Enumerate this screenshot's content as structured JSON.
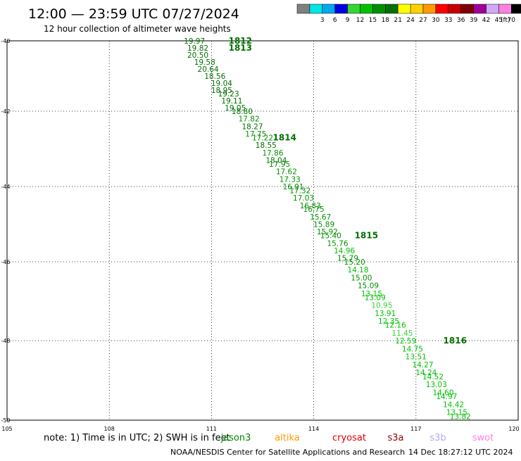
{
  "header": {
    "title": "12:00 — 23:59 UTC 07/27/2024",
    "subtitle": "12 hour collection of altimeter wave heights"
  },
  "legend": {
    "unit": "(ft)",
    "bins": [
      {
        "label": "",
        "color": "#808080"
      },
      {
        "label": "3",
        "color": "#00e5e5"
      },
      {
        "label": "6",
        "color": "#00a8f0"
      },
      {
        "label": "9",
        "color": "#0000e6"
      },
      {
        "label": "12",
        "color": "#33d633"
      },
      {
        "label": "15",
        "color": "#00c000"
      },
      {
        "label": "18",
        "color": "#009000"
      },
      {
        "label": "21",
        "color": "#007000"
      },
      {
        "label": "24",
        "color": "#ffff00"
      },
      {
        "label": "27",
        "color": "#ffd000"
      },
      {
        "label": "30",
        "color": "#ff9900"
      },
      {
        "label": "33",
        "color": "#ff0000"
      },
      {
        "label": "36",
        "color": "#c80000"
      },
      {
        "label": "39",
        "color": "#800000"
      },
      {
        "label": "42",
        "color": "#a0009a"
      },
      {
        "label": "45",
        "color": "#d0a8f8"
      },
      {
        "label": "70",
        "color": "#ff80e0"
      },
      {
        "label": "",
        "color": "#000000"
      }
    ]
  },
  "map": {
    "lat_labels": [
      "-40",
      "-42",
      "-44",
      "-46",
      "-48",
      "-50"
    ],
    "lon_labels": [
      "105",
      "108",
      "111",
      "114",
      "117",
      "120"
    ],
    "note": "note:  1) Time is in UTC;  2) SWH is in feet",
    "satellites": [
      {
        "name": "jason3",
        "color": "#008800"
      },
      {
        "name": "altika",
        "color": "#ff9900"
      },
      {
        "name": "cryosat",
        "color": "#e00000"
      },
      {
        "name": "s3a",
        "color": "#900000"
      },
      {
        "name": "s3b",
        "color": "#b8a8ee"
      },
      {
        "name": "swot",
        "color": "#ff80e0"
      }
    ],
    "hour_labels": [
      {
        "label": "1812",
        "lon": 111.5,
        "lat": -40.0
      },
      {
        "label": "1813",
        "lon": 111.5,
        "lat": -40.2
      },
      {
        "label": "1814",
        "lon": 112.8,
        "lat": -42.7
      },
      {
        "label": "1815",
        "lon": 115.2,
        "lat": -45.3
      },
      {
        "label": "1816",
        "lon": 117.8,
        "lat": -48.0
      }
    ],
    "swh_points": [
      {
        "value": "19.97",
        "lon": 110.5,
        "lat": -40.0
      },
      {
        "value": "19.82",
        "lon": 110.6,
        "lat": -40.2
      },
      {
        "value": "20.50",
        "lon": 110.6,
        "lat": -40.4
      },
      {
        "value": "19.58",
        "lon": 110.8,
        "lat": -40.6
      },
      {
        "value": "20.64",
        "lon": 110.9,
        "lat": -40.8
      },
      {
        "value": "18.56",
        "lon": 111.1,
        "lat": -41.0
      },
      {
        "value": "19.04",
        "lon": 111.3,
        "lat": -41.2
      },
      {
        "value": "18.95",
        "lon": 111.3,
        "lat": -41.4
      },
      {
        "value": "19.23",
        "lon": 111.5,
        "lat": -41.5
      },
      {
        "value": "19.11",
        "lon": 111.6,
        "lat": -41.7
      },
      {
        "value": "19.05",
        "lon": 111.7,
        "lat": -41.9
      },
      {
        "value": "18.80",
        "lon": 111.9,
        "lat": -42.0
      },
      {
        "value": "17.82",
        "lon": 112.1,
        "lat": -42.2
      },
      {
        "value": "18.27",
        "lon": 112.2,
        "lat": -42.4
      },
      {
        "value": "17.75",
        "lon": 112.3,
        "lat": -42.6
      },
      {
        "value": "17.22",
        "lon": 112.5,
        "lat": -42.7
      },
      {
        "value": "18.55",
        "lon": 112.6,
        "lat": -42.9
      },
      {
        "value": "17.86",
        "lon": 112.8,
        "lat": -43.1
      },
      {
        "value": "18.04",
        "lon": 112.9,
        "lat": -43.3
      },
      {
        "value": "17.95",
        "lon": 113.0,
        "lat": -43.4
      },
      {
        "value": "17.62",
        "lon": 113.2,
        "lat": -43.6
      },
      {
        "value": "17.33",
        "lon": 113.3,
        "lat": -43.8
      },
      {
        "value": "16.91",
        "lon": 113.4,
        "lat": -44.0
      },
      {
        "value": "17.32",
        "lon": 113.6,
        "lat": -44.1
      },
      {
        "value": "17.03",
        "lon": 113.7,
        "lat": -44.3
      },
      {
        "value": "16.83",
        "lon": 113.9,
        "lat": -44.5
      },
      {
        "value": "16.75",
        "lon": 114.0,
        "lat": -44.6
      },
      {
        "value": "15.67",
        "lon": 114.2,
        "lat": -44.8
      },
      {
        "value": "15.89",
        "lon": 114.3,
        "lat": -45.0
      },
      {
        "value": "15.92",
        "lon": 114.4,
        "lat": -45.2
      },
      {
        "value": "15.40",
        "lon": 114.5,
        "lat": -45.3
      },
      {
        "value": "15.76",
        "lon": 114.7,
        "lat": -45.5
      },
      {
        "value": "14.96",
        "lon": 114.9,
        "lat": -45.7
      },
      {
        "value": "15.79",
        "lon": 115.0,
        "lat": -45.9
      },
      {
        "value": "15.20",
        "lon": 115.2,
        "lat": -46.0
      },
      {
        "value": "14.18",
        "lon": 115.3,
        "lat": -46.2
      },
      {
        "value": "15.00",
        "lon": 115.4,
        "lat": -46.4
      },
      {
        "value": "15.09",
        "lon": 115.6,
        "lat": -46.6
      },
      {
        "value": "13.15",
        "lon": 115.7,
        "lat": -46.8
      },
      {
        "value": "13.09",
        "lon": 115.8,
        "lat": -46.9
      },
      {
        "value": "10.95",
        "lon": 116.0,
        "lat": -47.1
      },
      {
        "value": "13.91",
        "lon": 116.1,
        "lat": -47.3
      },
      {
        "value": "12.35",
        "lon": 116.2,
        "lat": -47.5
      },
      {
        "value": "12.16",
        "lon": 116.4,
        "lat": -47.6
      },
      {
        "value": "11.45",
        "lon": 116.6,
        "lat": -47.8
      },
      {
        "value": "12.59",
        "lon": 116.7,
        "lat": -48.0
      },
      {
        "value": "14.75",
        "lon": 116.9,
        "lat": -48.2
      },
      {
        "value": "13.51",
        "lon": 117.0,
        "lat": -48.4
      },
      {
        "value": "14.27",
        "lon": 117.2,
        "lat": -48.6
      },
      {
        "value": "14.24",
        "lon": 117.3,
        "lat": -48.8
      },
      {
        "value": "14.52",
        "lon": 117.5,
        "lat": -48.9
      },
      {
        "value": "13.03",
        "lon": 117.6,
        "lat": -49.1
      },
      {
        "value": "14.60",
        "lon": 117.8,
        "lat": -49.3
      },
      {
        "value": "14.97",
        "lon": 117.9,
        "lat": -49.4
      },
      {
        "value": "14.42",
        "lon": 118.1,
        "lat": -49.6
      },
      {
        "value": "13.15",
        "lon": 118.2,
        "lat": -49.8
      },
      {
        "value": "13.82",
        "lon": 118.3,
        "lat": -49.9
      }
    ]
  },
  "footer": {
    "credit": "NOAA/NESDIS Center for Satellite Applications and Research",
    "timestamp": "14 Dec 18:27:12 UTC 2024"
  }
}
